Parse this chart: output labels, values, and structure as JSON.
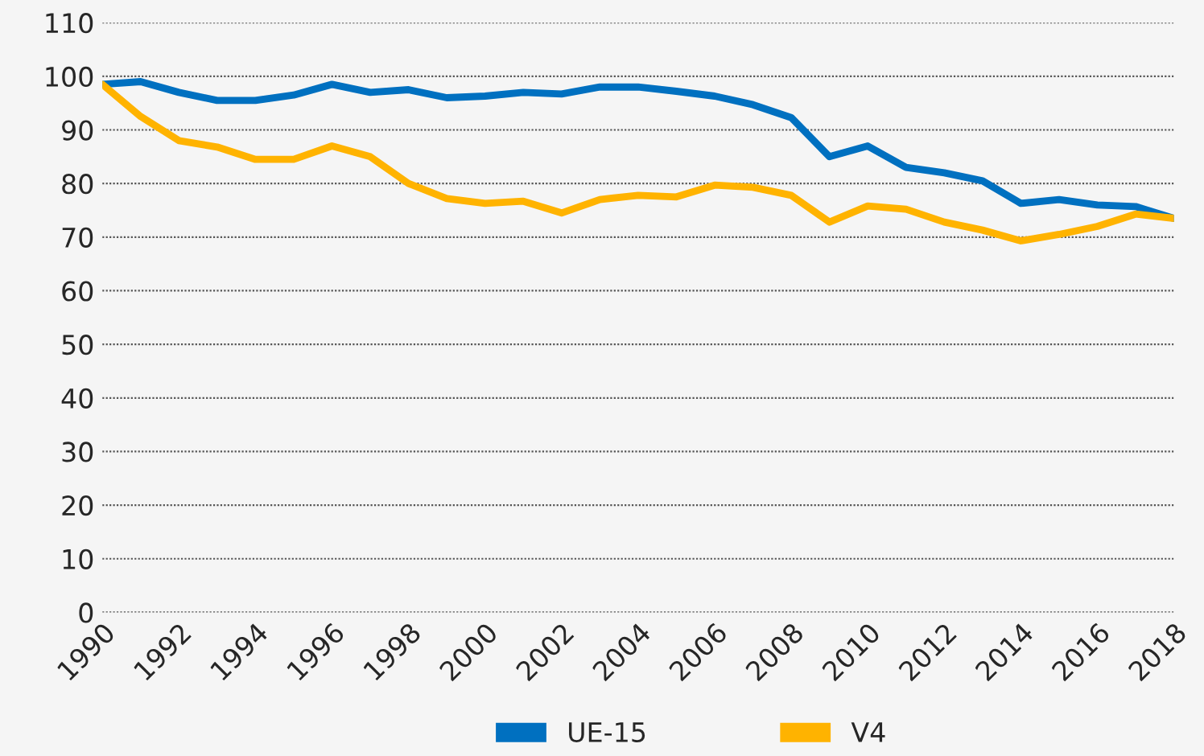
{
  "chart_data": {
    "type": "line",
    "x": [
      1990,
      1991,
      1992,
      1993,
      1994,
      1995,
      1996,
      1997,
      1998,
      1999,
      2000,
      2001,
      2002,
      2003,
      2004,
      2005,
      2006,
      2007,
      2008,
      2009,
      2010,
      2011,
      2012,
      2013,
      2014,
      2015,
      2016,
      2017,
      2018
    ],
    "series": [
      {
        "name": "UE-15",
        "color": "#0070c0",
        "values": [
          98.5,
          99,
          97,
          95.5,
          95.5,
          96.5,
          98.5,
          97,
          97.5,
          96,
          96.3,
          97,
          96.7,
          98,
          98,
          97.2,
          96.3,
          94.7,
          92.3,
          85,
          87,
          83,
          82,
          80.5,
          76.3,
          77,
          76,
          75.7,
          73.5
        ]
      },
      {
        "name": "V4",
        "color": "#ffb300",
        "values": [
          98.5,
          92.5,
          88,
          86.8,
          84.5,
          84.5,
          87,
          85,
          80,
          77.2,
          76.3,
          76.7,
          74.5,
          77,
          77.8,
          77.5,
          79.7,
          79.3,
          77.8,
          72.8,
          75.8,
          75.2,
          72.8,
          71.3,
          69.3,
          70.5,
          72,
          74.3,
          73.5
        ]
      }
    ],
    "xlim": [
      1990,
      2018
    ],
    "xticks": [
      1990,
      1992,
      1994,
      1996,
      1998,
      2000,
      2002,
      2004,
      2006,
      2008,
      2010,
      2012,
      2014,
      2016,
      2018
    ],
    "ylim": [
      0,
      110
    ],
    "yticks": [
      0,
      10,
      20,
      30,
      40,
      50,
      60,
      70,
      80,
      90,
      100,
      110
    ],
    "grid": "y",
    "legend": "bottom",
    "marker": "none",
    "line_style": "solid"
  }
}
